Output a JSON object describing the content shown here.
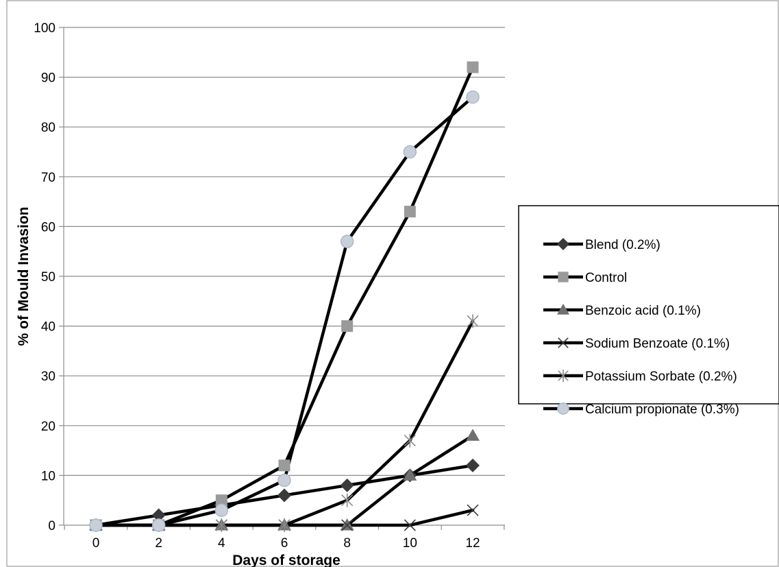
{
  "chart_data": {
    "type": "line",
    "xlabel": "Days of storage",
    "ylabel": "% of Mould Invasion",
    "x": [
      0,
      2,
      4,
      6,
      8,
      10,
      12
    ],
    "xlim": [
      0,
      12
    ],
    "ylim": [
      0,
      100
    ],
    "y_ticks": [
      0,
      10,
      20,
      30,
      40,
      50,
      60,
      70,
      80,
      90,
      100
    ],
    "x_ticks": [
      0,
      2,
      4,
      6,
      8,
      10,
      12
    ],
    "grid": "horizontal",
    "legend_position": "right",
    "series": [
      {
        "name": "Blend (0.2%)",
        "marker": "diamond",
        "color": "#3a3a3a",
        "values": [
          0,
          2,
          4,
          6,
          8,
          10,
          12
        ]
      },
      {
        "name": "Control",
        "marker": "square",
        "color": "#9a9a9a",
        "values": [
          0,
          0,
          5,
          12,
          40,
          63,
          92
        ]
      },
      {
        "name": "Benzoic acid (0.1%)",
        "marker": "triangle",
        "color": "#707070",
        "values": [
          0,
          0,
          0,
          0,
          0,
          10,
          18
        ]
      },
      {
        "name": "Sodium Benzoate (0.1%)",
        "marker": "x",
        "color": "#3a3a3a",
        "values": [
          0,
          0,
          0,
          0,
          0,
          0,
          3
        ]
      },
      {
        "name": "Potassium Sorbate (0.2%)",
        "marker": "star",
        "color": "#8a8a8a",
        "values": [
          0,
          0,
          0,
          0,
          5,
          17,
          41
        ]
      },
      {
        "name": "Calcium propionate (0.3%)",
        "marker": "circle",
        "color": "#c8cfd8",
        "values": [
          0,
          0,
          3,
          9,
          57,
          75,
          86
        ]
      }
    ]
  }
}
